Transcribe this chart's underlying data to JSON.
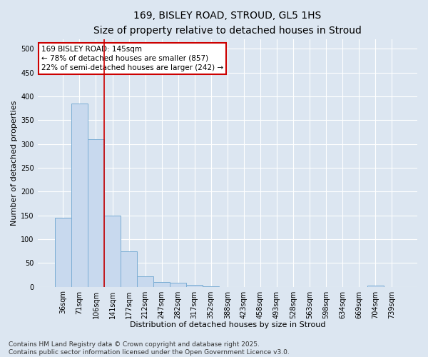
{
  "title1": "169, BISLEY ROAD, STROUD, GL5 1HS",
  "title2": "Size of property relative to detached houses in Stroud",
  "xlabel": "Distribution of detached houses by size in Stroud",
  "ylabel": "Number of detached properties",
  "bar_color": "#c8d9ee",
  "bar_edge_color": "#7aadd4",
  "background_color": "#dce6f1",
  "grid_color": "#ffffff",
  "categories": [
    "36sqm",
    "71sqm",
    "106sqm",
    "141sqm",
    "177sqm",
    "212sqm",
    "247sqm",
    "282sqm",
    "317sqm",
    "352sqm",
    "388sqm",
    "423sqm",
    "458sqm",
    "493sqm",
    "528sqm",
    "563sqm",
    "598sqm",
    "634sqm",
    "669sqm",
    "704sqm",
    "739sqm"
  ],
  "values": [
    145,
    385,
    310,
    150,
    75,
    22,
    10,
    8,
    4,
    1,
    0,
    0,
    0,
    0,
    0,
    0,
    0,
    0,
    0,
    3,
    0
  ],
  "ylim": [
    0,
    520
  ],
  "yticks": [
    0,
    50,
    100,
    150,
    200,
    250,
    300,
    350,
    400,
    450,
    500
  ],
  "annotation_text": "169 BISLEY ROAD: 145sqm\n← 78% of detached houses are smaller (857)\n22% of semi-detached houses are larger (242) →",
  "annotation_box_color": "white",
  "annotation_box_edgecolor": "#cc0000",
  "marker_line_color": "#cc0000",
  "footer_text": "Contains HM Land Registry data © Crown copyright and database right 2025.\nContains public sector information licensed under the Open Government Licence v3.0.",
  "title_fontsize": 10,
  "subtitle_fontsize": 9,
  "label_fontsize": 8,
  "tick_fontsize": 7,
  "footer_fontsize": 6.5,
  "annot_fontsize": 7.5
}
